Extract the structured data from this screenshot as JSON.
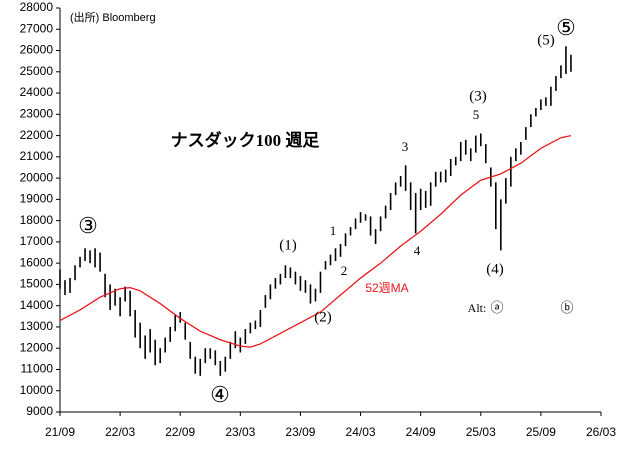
{
  "chart_data": {
    "type": "range-bar",
    "source": "(出所) Bloomberg",
    "title": "ナスダック100 週足",
    "xlim": [
      0,
      54
    ],
    "xticks": [
      {
        "value": 0,
        "label": "21/09"
      },
      {
        "value": 6,
        "label": "22/03"
      },
      {
        "value": 12,
        "label": "22/09"
      },
      {
        "value": 18,
        "label": "23/03"
      },
      {
        "value": 24,
        "label": "23/09"
      },
      {
        "value": 30,
        "label": "24/03"
      },
      {
        "value": 36,
        "label": "24/09"
      },
      {
        "value": 42,
        "label": "25/03"
      },
      {
        "value": 48,
        "label": "25/09"
      },
      {
        "value": 54,
        "label": "26/03"
      }
    ],
    "ylim": [
      9000,
      28000
    ],
    "yticks": [
      9000,
      10000,
      11000,
      12000,
      13000,
      14000,
      15000,
      16000,
      17000,
      18000,
      19000,
      20000,
      21000,
      22000,
      23000,
      24000,
      25000,
      26000,
      27000,
      28000
    ],
    "bars": {
      "color": "#000000",
      "x": [
        0,
        0.5,
        1,
        1.5,
        2,
        2.5,
        3,
        3.5,
        4,
        4.5,
        5,
        5.5,
        6,
        6.5,
        7,
        7.5,
        8,
        8.5,
        9,
        9.5,
        10,
        10.5,
        11,
        11.5,
        12,
        12.5,
        13,
        13.5,
        14,
        14.5,
        15,
        15.5,
        16,
        16.5,
        17,
        17.5,
        18,
        18.5,
        19,
        19.5,
        20,
        20.5,
        21,
        21.5,
        22,
        22.5,
        23,
        23.5,
        24,
        24.5,
        25,
        25.5,
        26,
        26.5,
        27,
        27.5,
        28,
        28.5,
        29,
        29.5,
        30,
        30.5,
        31,
        31.5,
        32,
        32.5,
        33,
        33.5,
        34,
        34.5,
        35,
        35.5,
        36,
        36.5,
        37,
        37.5,
        38,
        38.5,
        39,
        39.5,
        40,
        40.5,
        41,
        41.5,
        42,
        42.5,
        43,
        43.5,
        44,
        44.5,
        45,
        45.5,
        46,
        46.5,
        47,
        47.5,
        48,
        48.5,
        49,
        49.5,
        50,
        50.5,
        51
      ],
      "low": [
        14800,
        14500,
        14600,
        15200,
        15800,
        16100,
        16000,
        15800,
        15600,
        14400,
        13800,
        14000,
        13500,
        14200,
        13500,
        12500,
        12000,
        11500,
        11800,
        11200,
        11300,
        11800,
        12300,
        12800,
        13200,
        12400,
        11500,
        10800,
        10700,
        11300,
        11500,
        11200,
        10700,
        10900,
        11500,
        12000,
        11800,
        12200,
        12700,
        12900,
        13000,
        13900,
        14300,
        14800,
        15000,
        15300,
        15300,
        15000,
        14700,
        14600,
        14100,
        14200,
        14600,
        15700,
        15900,
        16100,
        16300,
        16800,
        17300,
        17600,
        17900,
        18000,
        17300,
        16900,
        17500,
        18100,
        18500,
        19200,
        19600,
        19400,
        18500,
        17400,
        18500,
        18600,
        18700,
        19600,
        19800,
        19800,
        20100,
        20600,
        20800,
        21100,
        20800,
        21200,
        21500,
        20700,
        19600,
        17600,
        16600,
        18800,
        19600,
        20800,
        21100,
        21800,
        22400,
        22900,
        23200,
        23400,
        23400,
        24100,
        24700,
        24900,
        25000
      ],
      "high": [
        15700,
        15200,
        15300,
        15900,
        16300,
        16700,
        16600,
        16700,
        16500,
        15500,
        15000,
        14800,
        14400,
        14900,
        14700,
        13800,
        13200,
        12600,
        12900,
        12400,
        12000,
        12500,
        13000,
        13600,
        13700,
        13200,
        12300,
        11600,
        11500,
        12000,
        12000,
        11900,
        11400,
        11600,
        12300,
        12800,
        12500,
        12900,
        13200,
        13300,
        13800,
        14500,
        15000,
        15300,
        15500,
        15900,
        15800,
        15600,
        15400,
        15200,
        15000,
        14800,
        15600,
        16100,
        16400,
        16700,
        16900,
        17400,
        17700,
        18100,
        18400,
        18300,
        18200,
        17600,
        18200,
        18700,
        19300,
        19800,
        20100,
        20600,
        19800,
        19300,
        19500,
        19400,
        19800,
        20300,
        20300,
        20400,
        20900,
        21000,
        21700,
        21800,
        21400,
        22000,
        22100,
        21600,
        20500,
        19800,
        19000,
        20000,
        21000,
        21400,
        21700,
        22400,
        23000,
        23300,
        23700,
        23800,
        24300,
        24800,
        25300,
        26200,
        25800
      ]
    },
    "ma": {
      "name": "52週MA",
      "color": "#e8191c",
      "x": [
        0,
        2,
        4,
        6,
        7,
        8,
        10,
        12,
        14,
        16,
        18,
        19,
        20,
        22,
        24,
        26,
        28,
        30,
        32,
        34,
        36,
        38,
        40,
        42,
        44,
        46,
        48,
        50,
        51
      ],
      "values": [
        13300,
        13800,
        14400,
        14800,
        14850,
        14700,
        14100,
        13400,
        12800,
        12400,
        12100,
        12050,
        12200,
        12700,
        13200,
        13700,
        14500,
        15300,
        16000,
        16800,
        17500,
        18300,
        19200,
        19900,
        20200,
        20700,
        21400,
        21900,
        22000
      ]
    },
    "annotations": [
      "③",
      "④",
      "⑤",
      "(1)",
      "(2)",
      "(3)",
      "(4)",
      "(5)",
      "1",
      "2",
      "3",
      "4",
      "5",
      "Alt:",
      "ⓐ",
      "ⓑ"
    ]
  }
}
